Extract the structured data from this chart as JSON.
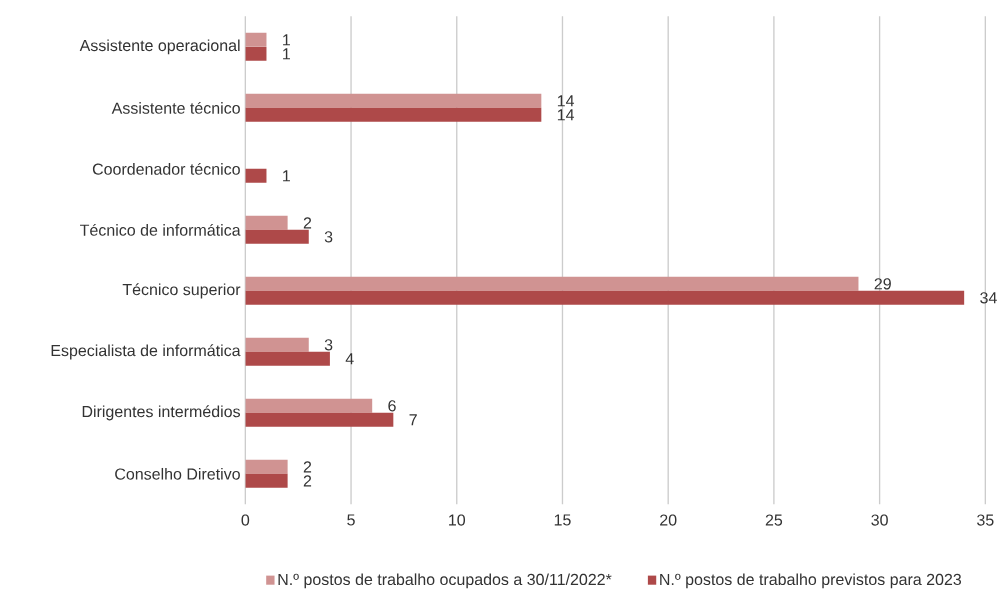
{
  "chart_data": {
    "type": "bar",
    "orientation": "horizontal",
    "categories": [
      "Assistente operacional",
      "Assistente técnico",
      "Coordenador técnico",
      "Técnico de informática",
      "Técnico superior",
      "Especialista de informática",
      "Dirigentes intermédios",
      "Conselho Diretivo"
    ],
    "series": [
      {
        "name": "N.º postos de trabalho ocupados a 30/11/2022*",
        "color": "#d09392",
        "values": [
          1,
          14,
          null,
          2,
          29,
          3,
          6,
          2
        ]
      },
      {
        "name": "N.º postos de trabalho previstos para 2023",
        "color": "#ae4949",
        "values": [
          1,
          14,
          1,
          3,
          34,
          4,
          7,
          2
        ]
      }
    ],
    "xlim": [
      0,
      35
    ],
    "xticks": [
      0,
      5,
      10,
      15,
      20,
      25,
      30,
      35
    ],
    "grid": "x",
    "legend": "bottom",
    "data_labels": true
  }
}
